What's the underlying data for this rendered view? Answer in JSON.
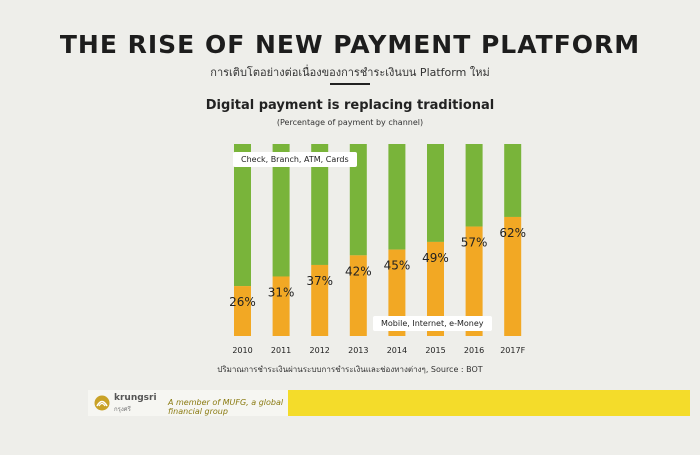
{
  "slide": {
    "title": "THE RISE OF NEW PAYMENT PLATFORM",
    "subtitle_thai": "การเติบโตอย่างต่อเนื่องของการชำระเงินบน Platform ใหม่",
    "source": "ปริมาณการชำระเงินผ่านระบบการชำระเงินและช่องทางต่างๆ, Source : BOT"
  },
  "footer": {
    "brand": "krungsri",
    "brand_thai": "กรุงศรี",
    "tagline": "A member of MUFG, a global financial group",
    "colors": {
      "yellow": "#f4dc2a",
      "logo": "#c9a227"
    }
  },
  "chart_data": {
    "type": "bar",
    "stacked": true,
    "title": "Digital payment is replacing traditional",
    "subtitle": "(Percentage of payment by channel)",
    "categories": [
      "2010",
      "2011",
      "2012",
      "2013",
      "2014",
      "2015",
      "2016",
      "2017F"
    ],
    "series": [
      {
        "name": "Mobile, Internet, e-Money",
        "color": "#f2a824",
        "values": [
          26,
          31,
          37,
          42,
          45,
          49,
          57,
          62
        ]
      },
      {
        "name": "Check, Branch, ATM, Cards",
        "color": "#79b43a",
        "values": [
          74,
          69,
          63,
          58,
          55,
          51,
          43,
          38
        ]
      }
    ],
    "data_labels": [
      "26%",
      "31%",
      "37%",
      "42%",
      "45%",
      "49%",
      "57%",
      "62%"
    ],
    "ylim": [
      0,
      100
    ],
    "grid": false,
    "legend": "inline"
  }
}
